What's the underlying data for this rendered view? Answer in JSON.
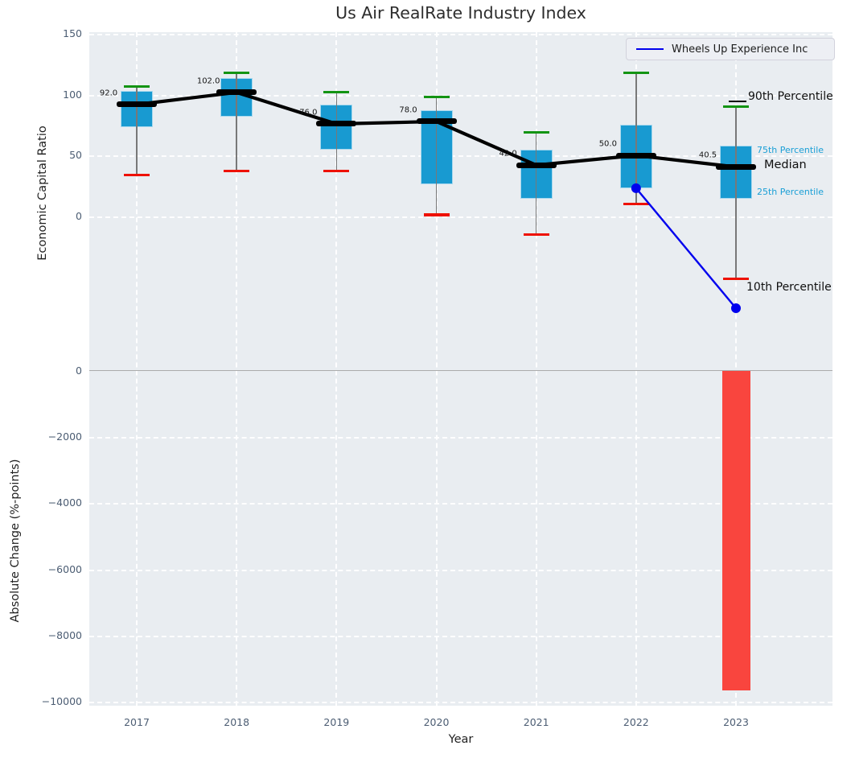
{
  "title": "Us Air RealRate Industry Index",
  "legend": {
    "label": "Wheels Up Experience Inc"
  },
  "annotations": {
    "p90": "90th Percentile",
    "p75": "75th Percentile",
    "median": "Median",
    "p25": "25th Percentile",
    "p10": "10th Percentile"
  },
  "colors": {
    "plot_background": "#e9edf1",
    "box_fill": "#189ad1",
    "box_edge": "#a8d8ee",
    "median_line": "#000000",
    "p90_cap": "#139413",
    "p10_cap": "#ee1100",
    "whisker": "#787878",
    "company_line": "#0000ee",
    "bar_negative": "#f9453e",
    "tick_text": "#4c5d73",
    "percentile_label_text": "#1a9fd6",
    "zero_line": "#ababab"
  },
  "chart_data": [
    {
      "type": "boxplot",
      "title": "Us Air RealRate Industry Index",
      "ylabel": "Economic Capital Ratio",
      "xlabel": "Year",
      "x_labels": [
        "2017",
        "2018",
        "2019",
        "2020",
        "2021",
        "2022",
        "2023"
      ],
      "yticks": [
        150,
        100,
        50,
        0
      ],
      "ytick_labels": [
        "150",
        "100",
        "50",
        "0"
      ],
      "ylim": [
        -125,
        152
      ],
      "grid": true,
      "legend_position": "upper right",
      "boxes": [
        {
          "year": "2017",
          "p10": 34,
          "q1": 73,
          "median": 92,
          "q3": 103,
          "p90": 107,
          "median_label": "92.0"
        },
        {
          "year": "2018",
          "p10": 37,
          "q1": 82,
          "median": 102,
          "q3": 114,
          "p90": 118,
          "median_label": "102.0"
        },
        {
          "year": "2019",
          "p10": 37,
          "q1": 55,
          "median": 76,
          "q3": 92,
          "p90": 102,
          "median_label": "76.0"
        },
        {
          "year": "2020",
          "p10": 1,
          "q1": 26,
          "median": 78,
          "q3": 87,
          "p90": 98,
          "median_label": "78.0"
        },
        {
          "year": "2021",
          "p10": -15,
          "q1": 14,
          "median": 42,
          "q3": 55,
          "p90": 69,
          "median_label": "42.0"
        },
        {
          "year": "2022",
          "p10": 10,
          "q1": 23,
          "median": 50,
          "q3": 75,
          "p90": 118,
          "median_label": "50.0"
        },
        {
          "year": "2023",
          "p10": -52,
          "q1": 14,
          "median": 40.5,
          "q3": 58,
          "p90": 90,
          "median_label": "40.5"
        }
      ],
      "company_line": {
        "name": "Wheels Up Experience Inc",
        "points": [
          {
            "x": "2022",
            "y": 23
          },
          {
            "x": "2023",
            "y": -76
          }
        ]
      }
    },
    {
      "type": "bar",
      "ylabel": "Absolute Change (%-points)",
      "xlabel": "Year",
      "categories": [
        "2017",
        "2018",
        "2019",
        "2020",
        "2021",
        "2022",
        "2023"
      ],
      "values": [
        null,
        null,
        null,
        null,
        null,
        null,
        -9660
      ],
      "yticks": [
        0,
        -2000,
        -4000,
        -6000,
        -8000,
        -10000
      ],
      "ytick_labels": [
        "0",
        "−2000",
        "−4000",
        "−6000",
        "−8000",
        "−10000"
      ],
      "ylim": [
        -10500,
        150
      ],
      "grid": true
    }
  ]
}
